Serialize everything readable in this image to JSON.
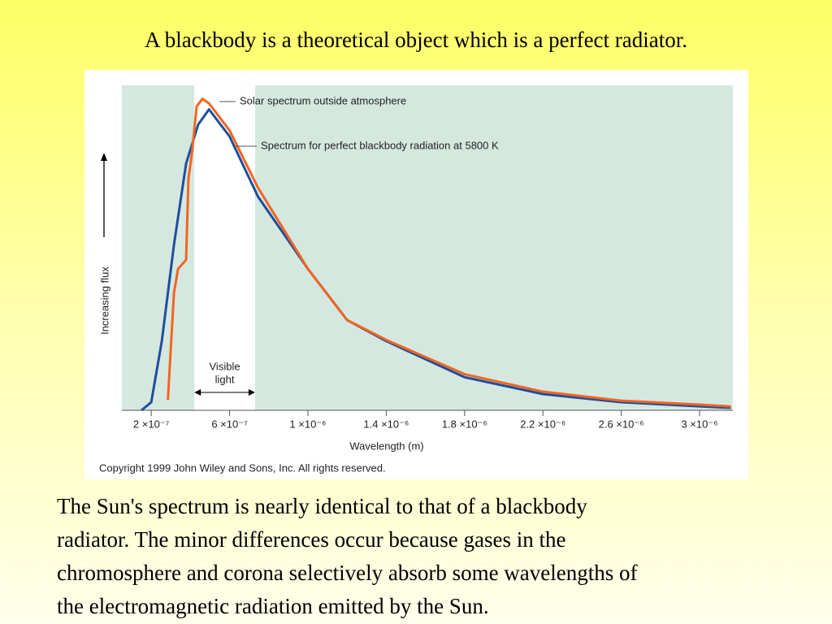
{
  "title": "A blackbody is a theoretical object which is a perfect radiator.",
  "chart_data": {
    "type": "line",
    "xlabel": "Wavelength (m)",
    "ylabel": "Increasing flux",
    "xlim": [
      5e-08,
      3.17e-06
    ],
    "ylim": [
      0,
      108
    ],
    "xticks": [
      {
        "value": 2e-07,
        "label": "2 ×10⁻⁷"
      },
      {
        "value": 6e-07,
        "label": "6 ×10⁻⁷"
      },
      {
        "value": 1e-06,
        "label": "1 ×10⁻⁶"
      },
      {
        "value": 1.4e-06,
        "label": "1.4 ×10⁻⁶"
      },
      {
        "value": 1.8e-06,
        "label": "1.8 ×10⁻⁶"
      },
      {
        "value": 2.2e-06,
        "label": "2.2 ×10⁻⁶"
      },
      {
        "value": 2.6e-06,
        "label": "2.6 ×10⁻⁶"
      },
      {
        "value": 3e-06,
        "label": "3 ×10⁻⁶"
      }
    ],
    "visible_band": {
      "range": [
        4.2e-07,
        7.3e-07
      ],
      "label": [
        "Visible",
        "light"
      ]
    },
    "series": [
      {
        "name": "Solar spectrum outside atmosphere",
        "color": "#f26522",
        "x": [
          2.85e-07,
          3.16e-07,
          3.37e-07,
          3.78e-07,
          3.9e-07,
          4.07e-07,
          4.32e-07,
          4.61e-07,
          4.95e-07,
          6e-07,
          7.45e-07,
          1e-06,
          1.2e-06,
          1.4e-06,
          1.8e-06,
          2.2e-06,
          2.6e-06,
          3e-06,
          3.16e-06
        ],
        "values": [
          3.5,
          39,
          47,
          50,
          77,
          85,
          101,
          103.5,
          102,
          93,
          74,
          47,
          30,
          23.4,
          12,
          6.2,
          3.2,
          1.9,
          1.3
        ]
      },
      {
        "name": "Spectrum for perfect blackbody radiation at 5800 K",
        "color": "#1f4e9c",
        "x": [
          1.5e-07,
          2e-07,
          2.54e-07,
          3.16e-07,
          3.78e-07,
          4.4e-07,
          4.95e-07,
          6e-07,
          7.45e-07,
          1e-06,
          1.2e-06,
          1.4e-06,
          1.8e-06,
          2.2e-06,
          2.6e-06,
          3e-06,
          3.16e-06
        ],
        "values": [
          0,
          2.7,
          23,
          55,
          82,
          95,
          100,
          91,
          71,
          47,
          30,
          23,
          11,
          5.4,
          2.7,
          1.3,
          0.8
        ]
      }
    ],
    "copyright": "Copyright 1999 John Wiley and Sons, Inc. All rights reserved."
  },
  "body": [
    "The Sun's spectrum is nearly identical to that of a blackbody",
    "radiator. The minor differences occur because gases in the",
    "chromosphere and corona selectively absorb some wavelengths of",
    "the electromagnetic radiation emitted by the Sun."
  ]
}
